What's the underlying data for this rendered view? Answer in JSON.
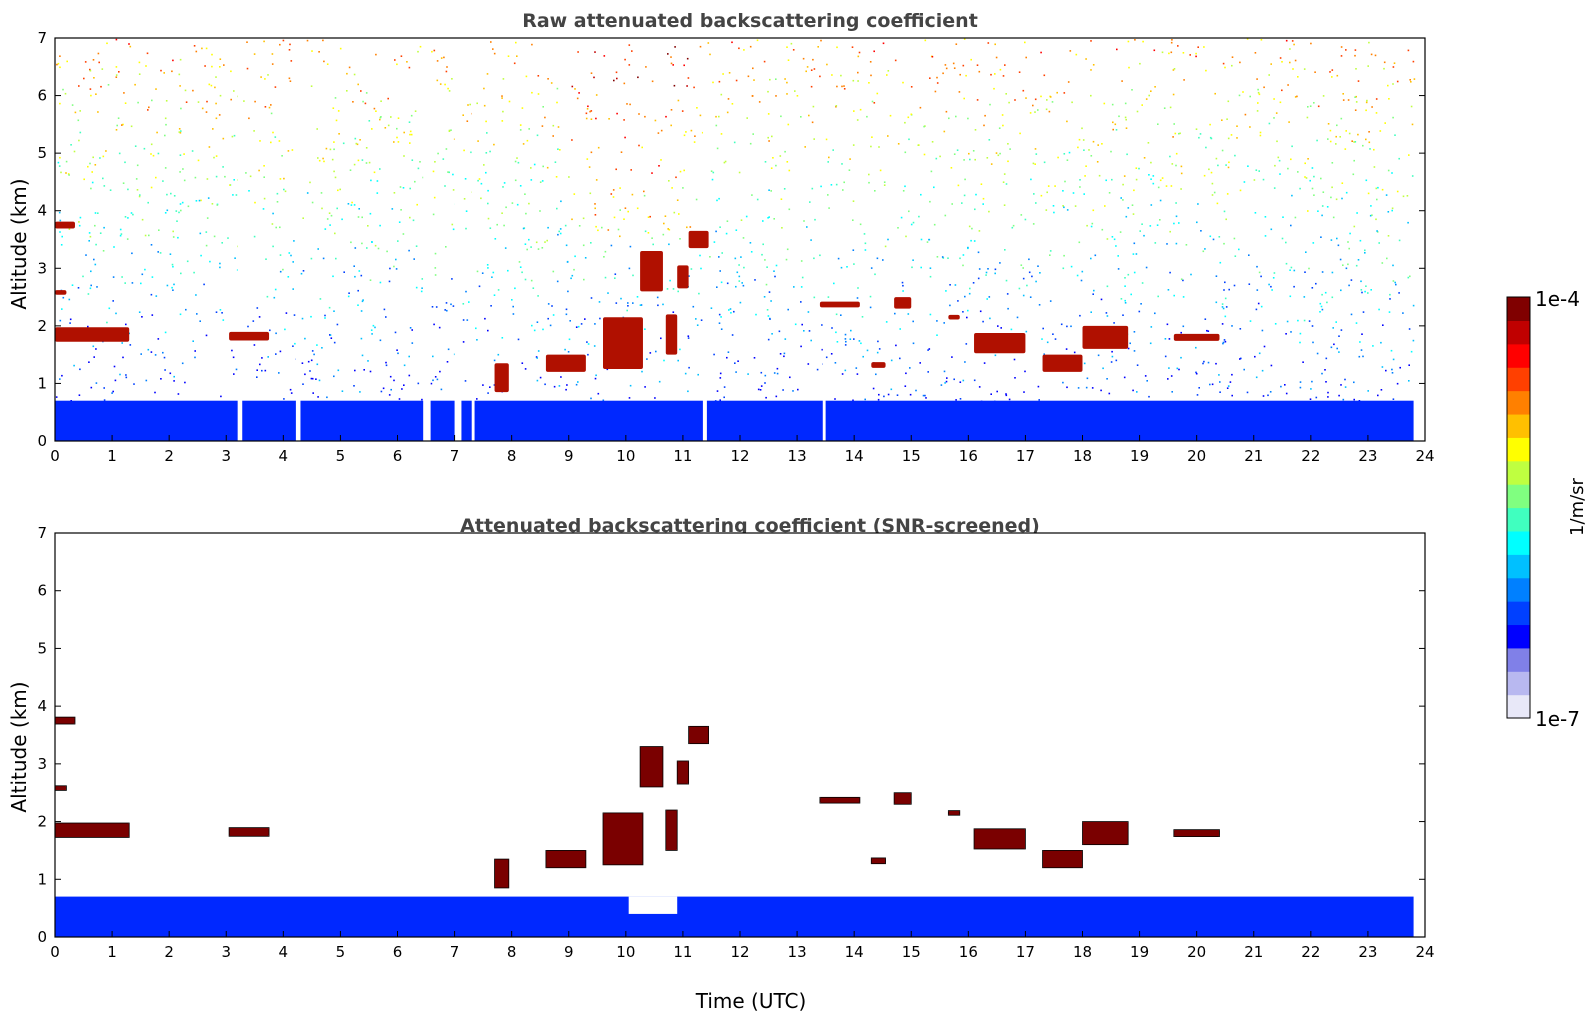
{
  "chart_data": [
    {
      "type": "heatmap",
      "title": "Raw attenuated backscattering coefficient",
      "xlabel": "",
      "ylabel": "Altitude (km)",
      "xlim": [
        0,
        24
      ],
      "ylim": [
        0,
        7
      ],
      "xticks": [
        "0",
        "1",
        "2",
        "3",
        "4",
        "5",
        "6",
        "7",
        "8",
        "9",
        "10",
        "11",
        "12",
        "13",
        "14",
        "15",
        "16",
        "17",
        "18",
        "19",
        "20",
        "21",
        "22",
        "23",
        "24"
      ],
      "yticks": [
        "0",
        "1",
        "2",
        "3",
        "4",
        "5",
        "6",
        "7"
      ],
      "data_end_hour": 23.8,
      "boundary_layer_top_km": 0.7,
      "gaps_hours": [
        [
          3.2,
          3.28
        ],
        [
          4.22,
          4.3
        ],
        [
          6.45,
          6.58
        ],
        [
          7.0,
          7.12
        ],
        [
          7.3,
          7.35
        ],
        [
          11.35,
          11.42
        ],
        [
          13.45,
          13.5
        ]
      ],
      "cloud_layers": [
        {
          "t_start": 0.0,
          "t_end": 1.3,
          "alt_km": 1.85,
          "thickness_km": 0.25
        },
        {
          "t_start": 0.0,
          "t_end": 0.35,
          "alt_km": 3.75,
          "thickness_km": 0.12
        },
        {
          "t_start": 0.0,
          "t_end": 0.2,
          "alt_km": 2.58,
          "thickness_km": 0.08
        },
        {
          "t_start": 3.05,
          "t_end": 3.75,
          "alt_km": 1.82,
          "thickness_km": 0.15
        },
        {
          "t_start": 7.7,
          "t_end": 7.95,
          "alt_km": 1.1,
          "thickness_km": 0.5
        },
        {
          "t_start": 8.6,
          "t_end": 9.3,
          "alt_km": 1.35,
          "thickness_km": 0.3
        },
        {
          "t_start": 9.6,
          "t_end": 10.3,
          "alt_km": 1.7,
          "thickness_km": 0.9
        },
        {
          "t_start": 10.25,
          "t_end": 10.65,
          "alt_km": 2.95,
          "thickness_km": 0.7
        },
        {
          "t_start": 10.7,
          "t_end": 10.9,
          "alt_km": 1.85,
          "thickness_km": 0.7
        },
        {
          "t_start": 10.9,
          "t_end": 11.1,
          "alt_km": 2.85,
          "thickness_km": 0.4
        },
        {
          "t_start": 11.1,
          "t_end": 11.45,
          "alt_km": 3.5,
          "thickness_km": 0.3
        },
        {
          "t_start": 13.4,
          "t_end": 14.1,
          "alt_km": 2.37,
          "thickness_km": 0.1
        },
        {
          "t_start": 14.3,
          "t_end": 14.55,
          "alt_km": 1.32,
          "thickness_km": 0.1
        },
        {
          "t_start": 14.7,
          "t_end": 15.0,
          "alt_km": 2.4,
          "thickness_km": 0.2
        },
        {
          "t_start": 15.65,
          "t_end": 15.85,
          "alt_km": 2.15,
          "thickness_km": 0.08
        },
        {
          "t_start": 16.1,
          "t_end": 17.0,
          "alt_km": 1.7,
          "thickness_km": 0.35
        },
        {
          "t_start": 17.3,
          "t_end": 18.0,
          "alt_km": 1.35,
          "thickness_km": 0.3
        },
        {
          "t_start": 18.0,
          "t_end": 18.8,
          "alt_km": 1.8,
          "thickness_km": 0.4
        },
        {
          "t_start": 19.6,
          "t_end": 20.4,
          "alt_km": 1.8,
          "thickness_km": 0.12
        }
      ]
    },
    {
      "type": "heatmap",
      "title": "Attenuated backscattering coefficient (SNR-screened)",
      "xlabel": "Time (UTC)",
      "ylabel": "Altitude (km)",
      "xlim": [
        0,
        24
      ],
      "ylim": [
        0,
        7
      ],
      "xticks": [
        "0",
        "1",
        "2",
        "3",
        "4",
        "5",
        "6",
        "7",
        "8",
        "9",
        "10",
        "11",
        "12",
        "13",
        "14",
        "15",
        "16",
        "17",
        "18",
        "19",
        "20",
        "21",
        "22",
        "23",
        "24"
      ],
      "yticks": [
        "0",
        "1",
        "2",
        "3",
        "4",
        "5",
        "6",
        "7"
      ],
      "data_end_hour": 23.8,
      "boundary_layer_top_km": 0.7,
      "screened_gap_hours": [
        10.05,
        10.9
      ],
      "screened_gap_top_km": 0.4,
      "cloud_layers": [
        {
          "t_start": 0.0,
          "t_end": 1.3,
          "alt_km": 1.85,
          "thickness_km": 0.25
        },
        {
          "t_start": 0.0,
          "t_end": 0.35,
          "alt_km": 3.75,
          "thickness_km": 0.12
        },
        {
          "t_start": 0.0,
          "t_end": 0.2,
          "alt_km": 2.58,
          "thickness_km": 0.08
        },
        {
          "t_start": 3.05,
          "t_end": 3.75,
          "alt_km": 1.82,
          "thickness_km": 0.15
        },
        {
          "t_start": 7.7,
          "t_end": 7.95,
          "alt_km": 1.1,
          "thickness_km": 0.5
        },
        {
          "t_start": 8.6,
          "t_end": 9.3,
          "alt_km": 1.35,
          "thickness_km": 0.3
        },
        {
          "t_start": 9.6,
          "t_end": 10.3,
          "alt_km": 1.7,
          "thickness_km": 0.9
        },
        {
          "t_start": 10.25,
          "t_end": 10.65,
          "alt_km": 2.95,
          "thickness_km": 0.7
        },
        {
          "t_start": 10.7,
          "t_end": 10.9,
          "alt_km": 1.85,
          "thickness_km": 0.7
        },
        {
          "t_start": 10.9,
          "t_end": 11.1,
          "alt_km": 2.85,
          "thickness_km": 0.4
        },
        {
          "t_start": 11.1,
          "t_end": 11.45,
          "alt_km": 3.5,
          "thickness_km": 0.3
        },
        {
          "t_start": 13.4,
          "t_end": 14.1,
          "alt_km": 2.37,
          "thickness_km": 0.1
        },
        {
          "t_start": 14.3,
          "t_end": 14.55,
          "alt_km": 1.32,
          "thickness_km": 0.1
        },
        {
          "t_start": 14.7,
          "t_end": 15.0,
          "alt_km": 2.4,
          "thickness_km": 0.2
        },
        {
          "t_start": 15.65,
          "t_end": 15.85,
          "alt_km": 2.15,
          "thickness_km": 0.08
        },
        {
          "t_start": 16.1,
          "t_end": 17.0,
          "alt_km": 1.7,
          "thickness_km": 0.35
        },
        {
          "t_start": 17.3,
          "t_end": 18.0,
          "alt_km": 1.35,
          "thickness_km": 0.3
        },
        {
          "t_start": 18.0,
          "t_end": 18.8,
          "alt_km": 1.8,
          "thickness_km": 0.4
        },
        {
          "t_start": 19.6,
          "t_end": 20.4,
          "alt_km": 1.8,
          "thickness_km": 0.12
        }
      ]
    }
  ],
  "colorbar": {
    "label": "1/m/sr",
    "max_label": "1e-4",
    "min_label": "1e-7",
    "scale": "log",
    "colormap": "jet",
    "colors": [
      "#e8e8f8",
      "#b8b8f0",
      "#8080e8",
      "#0000ff",
      "#0040ff",
      "#0080ff",
      "#00c0ff",
      "#00ffff",
      "#40ffbf",
      "#80ff80",
      "#bfff40",
      "#ffff00",
      "#ffc000",
      "#ff8000",
      "#ff4000",
      "#ff0000",
      "#c00000",
      "#800000"
    ]
  }
}
